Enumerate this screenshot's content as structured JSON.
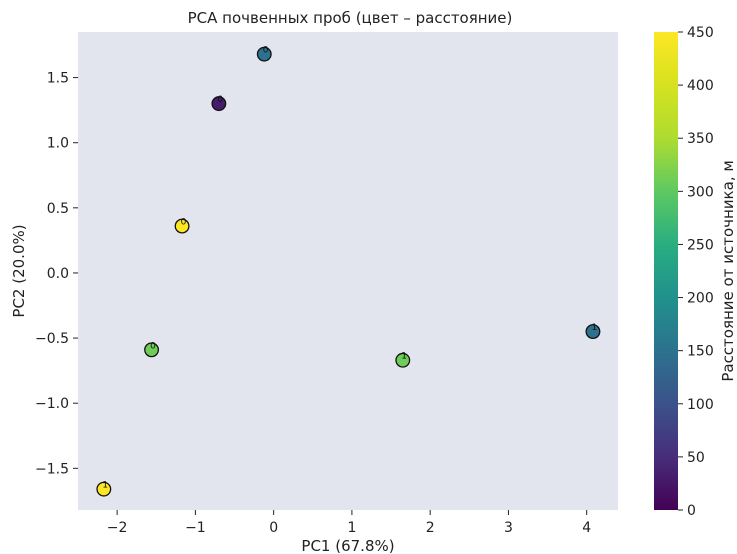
{
  "chart_data": {
    "type": "scatter",
    "title": "PCA почвенных проб (цвет – расстояние)",
    "xlabel": "PC1 (67.8%)",
    "ylabel": "PC2 (20.0%)",
    "xlim": [
      -2.5,
      4.4
    ],
    "ylim": [
      -1.82,
      1.85
    ],
    "x_ticks": [
      -2,
      -1,
      0,
      1,
      2,
      3,
      4
    ],
    "y_ticks": [
      -1.5,
      -1.0,
      -0.5,
      0.0,
      0.5,
      1.0,
      1.5
    ],
    "x_tick_labels": [
      "−2",
      "−1",
      "0",
      "1",
      "2",
      "3",
      "4"
    ],
    "y_tick_labels": [
      "−1.5",
      "−1.0",
      "−0.5",
      "0.0",
      "0.5",
      "1.0",
      "1.5"
    ],
    "grid": false,
    "background_color": "#e3e5ee",
    "colormap": "viridis",
    "colorbar": {
      "label": "Расстояние от источника, м",
      "range": [
        0,
        450
      ],
      "ticks": [
        0,
        50,
        100,
        150,
        200,
        250,
        300,
        350,
        400,
        450
      ],
      "tick_labels": [
        "0",
        "50",
        "100",
        "150",
        "200",
        "250",
        "300",
        "350",
        "400",
        "450"
      ]
    },
    "points": [
      {
        "label": "0",
        "x": -0.12,
        "y": 1.68,
        "distance": 150
      },
      {
        "label": "0",
        "x": -0.7,
        "y": 1.3,
        "distance": 30
      },
      {
        "label": "0",
        "x": -1.17,
        "y": 0.36,
        "distance": 450
      },
      {
        "label": "0",
        "x": -1.56,
        "y": -0.59,
        "distance": 310
      },
      {
        "label": "1",
        "x": -2.17,
        "y": -1.66,
        "distance": 450
      },
      {
        "label": "1",
        "x": 1.65,
        "y": -0.67,
        "distance": 310
      },
      {
        "label": "1",
        "x": 4.08,
        "y": -0.45,
        "distance": 150
      }
    ]
  }
}
